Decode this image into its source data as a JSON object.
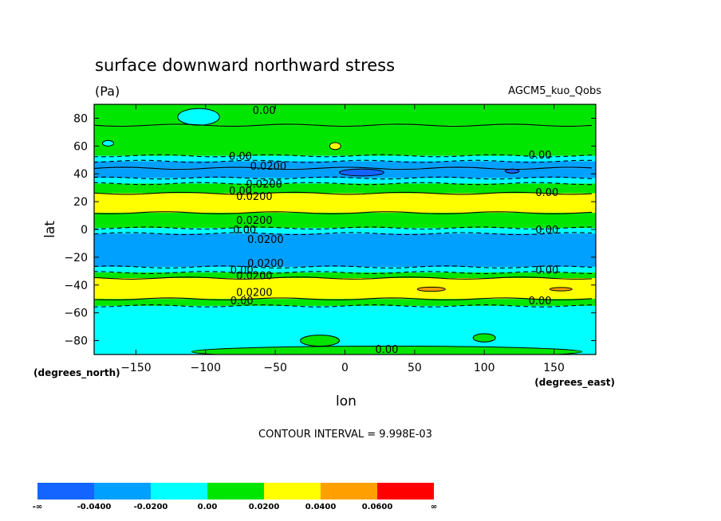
{
  "chart_data": {
    "type": "heatmap",
    "title": "surface downward northward stress",
    "units": "(Pa)",
    "model_label": "AGCM5_kuo_Qobs",
    "xlabel": "lon",
    "ylabel": "lat",
    "x_units_label": "(degrees_east)",
    "y_units_label": "(degrees_north)",
    "xlim": [
      -180,
      180
    ],
    "ylim": [
      -90,
      90
    ],
    "x_ticks": [
      -150,
      -100,
      -50,
      0,
      50,
      100,
      150
    ],
    "y_ticks": [
      80,
      60,
      40,
      20,
      0,
      -20,
      -40,
      -60,
      -80
    ],
    "contour_interval_label": "CONTOUR INTERVAL = 9.998E-03",
    "bands": [
      {
        "lat_top": 90,
        "lat_bottom": 75,
        "level": "0-0.02"
      },
      {
        "lat_top": 75,
        "lat_bottom": 53,
        "level": "0-0.02"
      },
      {
        "lat_top": 53,
        "lat_bottom": 49,
        "level": "-0.02-0"
      },
      {
        "lat_top": 49,
        "lat_bottom": 44,
        "level": "-0.04--0.02"
      },
      {
        "lat_top": 44,
        "lat_bottom": 37,
        "level": "-0.04--0.02"
      },
      {
        "lat_top": 37,
        "lat_bottom": 33,
        "level": "-0.02-0"
      },
      {
        "lat_top": 33,
        "lat_bottom": 26,
        "level": "0-0.02"
      },
      {
        "lat_top": 26,
        "lat_bottom": 12,
        "level": "0.02-0.04"
      },
      {
        "lat_top": 12,
        "lat_bottom": 1,
        "level": "0-0.02"
      },
      {
        "lat_top": 1,
        "lat_bottom": -3,
        "level": "-0.02-0"
      },
      {
        "lat_top": -3,
        "lat_bottom": -27,
        "level": "-0.04--0.02"
      },
      {
        "lat_top": -27,
        "lat_bottom": -31,
        "level": "-0.02-0"
      },
      {
        "lat_top": -31,
        "lat_bottom": -35,
        "level": "0-0.02"
      },
      {
        "lat_top": -35,
        "lat_bottom": -50,
        "level": "0.02-0.04"
      },
      {
        "lat_top": -50,
        "lat_bottom": -55,
        "level": "0-0.02"
      },
      {
        "lat_top": -55,
        "lat_bottom": -90,
        "level": "-0.02-0"
      }
    ],
    "patches": [
      {
        "lon": -105,
        "lat": 81,
        "rx": 15,
        "ry": 6,
        "level": "-0.02-0"
      },
      {
        "lon": -170,
        "lat": 62,
        "rx": 4,
        "ry": 2,
        "level": "-0.02-0"
      },
      {
        "lon": -7,
        "lat": 60,
        "rx": 4,
        "ry": 2.5,
        "level": "0.02-0.04"
      },
      {
        "lon": 12,
        "lat": 41,
        "rx": 16,
        "ry": 2.5,
        "level": "<-0.04"
      },
      {
        "lon": 120,
        "lat": 42,
        "rx": 5,
        "ry": 1.5,
        "level": "<-0.04"
      },
      {
        "lon": 62,
        "lat": -43,
        "rx": 10,
        "ry": 1.5,
        "level": "0.04-0.06"
      },
      {
        "lon": 155,
        "lat": -43,
        "rx": 8,
        "ry": 1.2,
        "level": "0.04-0.06"
      },
      {
        "lon": 100,
        "lat": -78,
        "rx": 8,
        "ry": 3,
        "level": "0-0.02"
      },
      {
        "lon": -18,
        "lat": -80,
        "rx": 14,
        "ry": 4,
        "level": "0-0.02"
      },
      {
        "lon": 30,
        "lat": -88,
        "rx": 140,
        "ry": 4,
        "level": "0-0.02"
      }
    ],
    "contour_labels": [
      {
        "text": "0.00",
        "lon": -58,
        "lat": 86
      },
      {
        "text": "0.00",
        "lon": -75,
        "lat": 53
      },
      {
        "text": "0.0200",
        "lon": -55,
        "lat": 46
      },
      {
        "text": "0.0200",
        "lon": -58,
        "lat": 33
      },
      {
        "text": "0.00",
        "lon": -75,
        "lat": 28
      },
      {
        "text": "0.0200",
        "lon": -65,
        "lat": 24
      },
      {
        "text": "0.0200",
        "lon": -65,
        "lat": 7
      },
      {
        "text": "0.00",
        "lon": -72,
        "lat": 0
      },
      {
        "text": "0.0200",
        "lon": -57,
        "lat": -7
      },
      {
        "text": "0.0200",
        "lon": -57,
        "lat": -24
      },
      {
        "text": "0.00",
        "lon": -74,
        "lat": -29
      },
      {
        "text": "0.0200",
        "lon": -65,
        "lat": -33
      },
      {
        "text": "0.0200",
        "lon": -65,
        "lat": -45
      },
      {
        "text": "0.00",
        "lon": -74,
        "lat": -51
      },
      {
        "text": "0.00",
        "lon": 140,
        "lat": 54
      },
      {
        "text": "0.00",
        "lon": 145,
        "lat": 27
      },
      {
        "text": "0.00",
        "lon": 145,
        "lat": 0
      },
      {
        "text": "0.00",
        "lon": 145,
        "lat": -29
      },
      {
        "text": "0.00",
        "lon": 140,
        "lat": -51
      },
      {
        "text": "0.00",
        "lon": 30,
        "lat": -86
      }
    ],
    "colorbar": {
      "colors": [
        "#1464ff",
        "#00a0ff",
        "#00ffff",
        "#00e600",
        "#ffff00",
        "#ffa000",
        "#ff0000"
      ],
      "levels_map": [
        "<-0.04",
        "-0.04--0.02",
        "-0.02-0",
        "0-0.02",
        "0.02-0.04",
        "0.04-0.06",
        ">0.06"
      ],
      "labels": [
        "-∞",
        "-0.0400",
        "-0.0200",
        "0.00",
        "0.0200",
        "0.0400",
        "0.0600",
        "∞"
      ]
    }
  }
}
